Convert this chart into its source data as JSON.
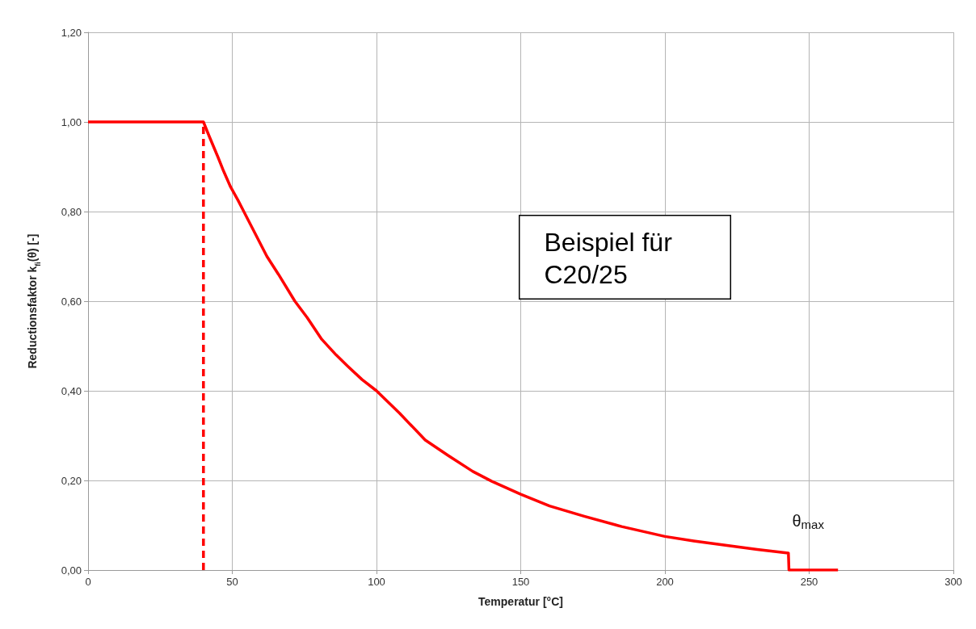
{
  "chart_data": {
    "type": "line",
    "xlabel": "Temperatur [°C]",
    "ylabel": "Reductionsfaktor k$_{fi}$(θ) [-]",
    "series": [
      {
        "color": "#ff0000",
        "x": [
          0,
          40,
          42,
          45,
          47,
          49.4,
          52,
          54,
          58,
          62,
          66,
          71.7,
          76,
          81,
          86,
          90,
          95,
          100,
          108,
          116.9,
          125,
          133.4,
          140,
          150,
          160,
          172,
          185,
          200,
          210,
          221.5,
          232,
          242.8,
          243,
          260
        ],
        "values": [
          1,
          1,
          0.968,
          0.922,
          0.89,
          0.855,
          0.825,
          0.8,
          0.75,
          0.7,
          0.66,
          0.6,
          0.563,
          0.515,
          0.48,
          0.455,
          0.425,
          0.4,
          0.35,
          0.29,
          0.255,
          0.22,
          0.198,
          0.169,
          0.143,
          0.12,
          0.097,
          0.075,
          0.065,
          0.055,
          0.046,
          0.038,
          0,
          0
        ]
      },
      {
        "color": "#ff0000",
        "x": [
          40,
          40
        ],
        "values": [
          0,
          1
        ],
        "line_style": "dashed"
      }
    ],
    "xlim": [
      0,
      300
    ],
    "xticks": [
      0,
      50,
      100,
      150,
      200,
      250,
      300
    ],
    "ylim": [
      0,
      1.2
    ],
    "yticks": [
      {
        "value": 0,
        "label": "0,00"
      },
      {
        "value": 0.2,
        "label": "0,20"
      },
      {
        "value": 0.4,
        "label": "0,40"
      },
      {
        "value": 0.6,
        "label": "0,60"
      },
      {
        "value": 0.8,
        "label": "0,80"
      },
      {
        "value": 1,
        "label": "1,00"
      },
      {
        "value": 1.2,
        "label": "1,20"
      }
    ],
    "grid": true,
    "marker": "none",
    "line_style": "solid",
    "annotations": [
      "Beispiel für C20/25",
      {
        "text": "θ$_{max}$",
        "x": 243,
        "y": 0.038
      }
    ]
  }
}
